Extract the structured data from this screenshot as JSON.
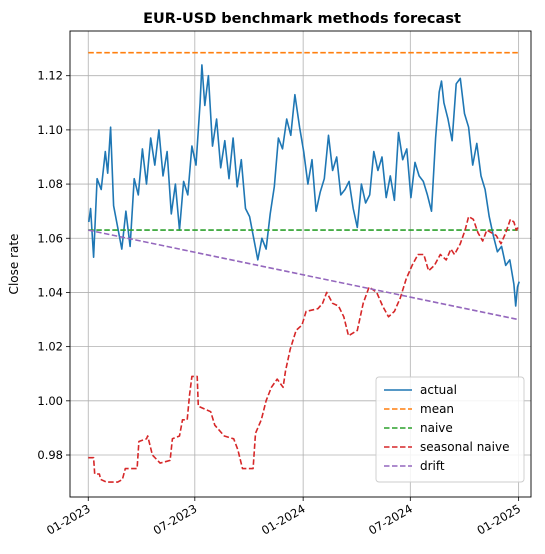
{
  "chart_data": {
    "type": "line",
    "title": "EUR-USD benchmark methods forecast",
    "xlabel": "",
    "ylabel": "Close rate",
    "xlim": [
      "2022-12-01",
      "2025-01-22"
    ],
    "ylim": [
      0.9645,
      1.1365
    ],
    "x_ticks": [
      "2023-01-01",
      "2023-07-01",
      "2024-01-01",
      "2024-07-01",
      "2025-01-01"
    ],
    "x_tick_labels": [
      "01-2023",
      "07-2023",
      "01-2024",
      "07-2024",
      "01-2025"
    ],
    "y_ticks": [
      0.98,
      1.0,
      1.02,
      1.04,
      1.06,
      1.08,
      1.1,
      1.12
    ],
    "y_tick_labels": [
      "0.98",
      "1.00",
      "1.02",
      "1.04",
      "1.06",
      "1.08",
      "1.10",
      "1.12"
    ],
    "grid": true,
    "legend_position": "lower-right",
    "series": [
      {
        "name": "actual",
        "color": "#1f77b4",
        "style": "solid",
        "points": [
          [
            "2023-01-02",
            1.066
          ],
          [
            "2023-01-05",
            1.071
          ],
          [
            "2023-01-10",
            1.053
          ],
          [
            "2023-01-16",
            1.082
          ],
          [
            "2023-01-23",
            1.078
          ],
          [
            "2023-01-30",
            1.092
          ],
          [
            "2023-02-03",
            1.084
          ],
          [
            "2023-02-08",
            1.101
          ],
          [
            "2023-02-13",
            1.072
          ],
          [
            "2023-02-20",
            1.064
          ],
          [
            "2023-02-27",
            1.056
          ],
          [
            "2023-03-06",
            1.07
          ],
          [
            "2023-03-13",
            1.057
          ],
          [
            "2023-03-20",
            1.082
          ],
          [
            "2023-03-27",
            1.076
          ],
          [
            "2023-04-03",
            1.093
          ],
          [
            "2023-04-10",
            1.08
          ],
          [
            "2023-04-17",
            1.097
          ],
          [
            "2023-04-24",
            1.087
          ],
          [
            "2023-05-01",
            1.1
          ],
          [
            "2023-05-08",
            1.083
          ],
          [
            "2023-05-15",
            1.092
          ],
          [
            "2023-05-22",
            1.069
          ],
          [
            "2023-05-29",
            1.08
          ],
          [
            "2023-06-05",
            1.063
          ],
          [
            "2023-06-12",
            1.081
          ],
          [
            "2023-06-19",
            1.076
          ],
          [
            "2023-06-26",
            1.094
          ],
          [
            "2023-07-03",
            1.087
          ],
          [
            "2023-07-10",
            1.11
          ],
          [
            "2023-07-13",
            1.124
          ],
          [
            "2023-07-18",
            1.109
          ],
          [
            "2023-07-24",
            1.12
          ],
          [
            "2023-07-31",
            1.094
          ],
          [
            "2023-08-07",
            1.104
          ],
          [
            "2023-08-14",
            1.086
          ],
          [
            "2023-08-21",
            1.096
          ],
          [
            "2023-08-28",
            1.082
          ],
          [
            "2023-09-04",
            1.097
          ],
          [
            "2023-09-11",
            1.079
          ],
          [
            "2023-09-18",
            1.089
          ],
          [
            "2023-09-25",
            1.071
          ],
          [
            "2023-10-02",
            1.068
          ],
          [
            "2023-10-09",
            1.06
          ],
          [
            "2023-10-16",
            1.052
          ],
          [
            "2023-10-23",
            1.06
          ],
          [
            "2023-10-30",
            1.056
          ],
          [
            "2023-11-06",
            1.069
          ],
          [
            "2023-11-13",
            1.079
          ],
          [
            "2023-11-20",
            1.097
          ],
          [
            "2023-11-27",
            1.093
          ],
          [
            "2023-12-04",
            1.104
          ],
          [
            "2023-12-11",
            1.098
          ],
          [
            "2023-12-18",
            1.113
          ],
          [
            "2023-12-26",
            1.101
          ],
          [
            "2024-01-02",
            1.092
          ],
          [
            "2024-01-09",
            1.08
          ],
          [
            "2024-01-16",
            1.089
          ],
          [
            "2024-01-23",
            1.07
          ],
          [
            "2024-01-30",
            1.077
          ],
          [
            "2024-02-06",
            1.082
          ],
          [
            "2024-02-13",
            1.098
          ],
          [
            "2024-02-20",
            1.085
          ],
          [
            "2024-02-27",
            1.09
          ],
          [
            "2024-03-05",
            1.076
          ],
          [
            "2024-03-12",
            1.078
          ],
          [
            "2024-03-19",
            1.081
          ],
          [
            "2024-03-26",
            1.071
          ],
          [
            "2024-04-02",
            1.064
          ],
          [
            "2024-04-09",
            1.08
          ],
          [
            "2024-04-16",
            1.073
          ],
          [
            "2024-04-23",
            1.076
          ],
          [
            "2024-04-30",
            1.092
          ],
          [
            "2024-05-07",
            1.085
          ],
          [
            "2024-05-14",
            1.09
          ],
          [
            "2024-05-21",
            1.075
          ],
          [
            "2024-05-28",
            1.083
          ],
          [
            "2024-06-04",
            1.074
          ],
          [
            "2024-06-11",
            1.099
          ],
          [
            "2024-06-18",
            1.089
          ],
          [
            "2024-06-25",
            1.093
          ],
          [
            "2024-07-02",
            1.075
          ],
          [
            "2024-07-09",
            1.088
          ],
          [
            "2024-07-16",
            1.083
          ],
          [
            "2024-07-23",
            1.081
          ],
          [
            "2024-07-30",
            1.076
          ],
          [
            "2024-08-06",
            1.07
          ],
          [
            "2024-08-13",
            1.097
          ],
          [
            "2024-08-19",
            1.114
          ],
          [
            "2024-08-23",
            1.118
          ],
          [
            "2024-08-27",
            1.11
          ],
          [
            "2024-09-03",
            1.104
          ],
          [
            "2024-09-10",
            1.096
          ],
          [
            "2024-09-17",
            1.117
          ],
          [
            "2024-09-24",
            1.119
          ],
          [
            "2024-10-01",
            1.106
          ],
          [
            "2024-10-08",
            1.101
          ],
          [
            "2024-10-15",
            1.087
          ],
          [
            "2024-10-22",
            1.095
          ],
          [
            "2024-10-29",
            1.083
          ],
          [
            "2024-11-05",
            1.078
          ],
          [
            "2024-11-12",
            1.068
          ],
          [
            "2024-11-19",
            1.061
          ],
          [
            "2024-11-26",
            1.055
          ],
          [
            "2024-12-03",
            1.057
          ],
          [
            "2024-12-10",
            1.05
          ],
          [
            "2024-12-17",
            1.052
          ],
          [
            "2024-12-24",
            1.043
          ],
          [
            "2024-12-27",
            1.035
          ],
          [
            "2024-12-30",
            1.042
          ],
          [
            "2025-01-02",
            1.044
          ]
        ]
      },
      {
        "name": "mean",
        "color": "#ff7f0e",
        "style": "dashed",
        "points": [
          [
            "2023-01-01",
            1.1285
          ],
          [
            "2024-12-31",
            1.1285
          ]
        ]
      },
      {
        "name": "naive",
        "color": "#2ca02c",
        "style": "dashed",
        "points": [
          [
            "2023-01-01",
            1.063
          ],
          [
            "2024-12-31",
            1.063
          ]
        ]
      },
      {
        "name": "seasonal naive",
        "color": "#d62728",
        "style": "dashed",
        "points": [
          [
            "2023-01-01",
            0.979
          ],
          [
            "2023-01-10",
            0.979
          ],
          [
            "2023-01-12",
            0.973
          ],
          [
            "2023-01-20",
            0.973
          ],
          [
            "2023-01-22",
            0.971
          ],
          [
            "2023-02-01",
            0.97
          ],
          [
            "2023-02-20",
            0.97
          ],
          [
            "2023-02-28",
            0.971
          ],
          [
            "2023-03-05",
            0.975
          ],
          [
            "2023-03-25",
            0.975
          ],
          [
            "2023-03-28",
            0.985
          ],
          [
            "2023-04-10",
            0.986
          ],
          [
            "2023-04-12",
            0.987
          ],
          [
            "2023-04-20",
            0.98
          ],
          [
            "2023-05-03",
            0.977
          ],
          [
            "2023-05-20",
            0.978
          ],
          [
            "2023-05-24",
            0.986
          ],
          [
            "2023-06-05",
            0.987
          ],
          [
            "2023-06-10",
            0.993
          ],
          [
            "2023-06-18",
            0.993
          ],
          [
            "2023-06-22",
            1.002
          ],
          [
            "2023-06-26",
            1.009
          ],
          [
            "2023-07-05",
            1.009
          ],
          [
            "2023-07-07",
            0.998
          ],
          [
            "2023-07-28",
            0.996
          ],
          [
            "2023-08-04",
            0.991
          ],
          [
            "2023-08-20",
            0.987
          ],
          [
            "2023-09-05",
            0.986
          ],
          [
            "2023-09-12",
            0.982
          ],
          [
            "2023-09-20",
            0.975
          ],
          [
            "2023-10-08",
            0.975
          ],
          [
            "2023-10-12",
            0.988
          ],
          [
            "2023-10-22",
            0.993
          ],
          [
            "2023-10-30",
            1.0
          ],
          [
            "2023-11-08",
            1.005
          ],
          [
            "2023-11-18",
            1.008
          ],
          [
            "2023-11-28",
            1.005
          ],
          [
            "2023-12-02",
            1.011
          ],
          [
            "2023-12-10",
            1.019
          ],
          [
            "2023-12-20",
            1.026
          ],
          [
            "2023-12-30",
            1.028
          ],
          [
            "2024-01-06",
            1.033
          ],
          [
            "2024-01-26",
            1.034
          ],
          [
            "2024-02-03",
            1.036
          ],
          [
            "2024-02-10",
            1.04
          ],
          [
            "2024-02-20",
            1.036
          ],
          [
            "2024-03-01",
            1.035
          ],
          [
            "2024-03-10",
            1.031
          ],
          [
            "2024-03-18",
            1.024
          ],
          [
            "2024-04-02",
            1.026
          ],
          [
            "2024-04-12",
            1.036
          ],
          [
            "2024-04-22",
            1.042
          ],
          [
            "2024-05-05",
            1.04
          ],
          [
            "2024-05-15",
            1.035
          ],
          [
            "2024-05-25",
            1.031
          ],
          [
            "2024-06-04",
            1.033
          ],
          [
            "2024-06-14",
            1.038
          ],
          [
            "2024-06-24",
            1.045
          ],
          [
            "2024-07-04",
            1.05
          ],
          [
            "2024-07-14",
            1.054
          ],
          [
            "2024-07-24",
            1.054
          ],
          [
            "2024-08-01",
            1.048
          ],
          [
            "2024-08-11",
            1.05
          ],
          [
            "2024-08-21",
            1.054
          ],
          [
            "2024-08-31",
            1.052
          ],
          [
            "2024-09-08",
            1.056
          ],
          [
            "2024-09-14",
            1.054
          ],
          [
            "2024-09-24",
            1.058
          ],
          [
            "2024-10-02",
            1.063
          ],
          [
            "2024-10-08",
            1.068
          ],
          [
            "2024-10-16",
            1.067
          ],
          [
            "2024-10-24",
            1.062
          ],
          [
            "2024-11-01",
            1.059
          ],
          [
            "2024-11-08",
            1.063
          ],
          [
            "2024-11-16",
            1.062
          ],
          [
            "2024-11-24",
            1.061
          ],
          [
            "2024-12-02",
            1.058
          ],
          [
            "2024-12-10",
            1.062
          ],
          [
            "2024-12-18",
            1.067
          ],
          [
            "2024-12-24",
            1.066
          ],
          [
            "2024-12-28",
            1.063
          ],
          [
            "2024-12-31",
            1.064
          ]
        ]
      },
      {
        "name": "drift",
        "color": "#9467bd",
        "style": "dashed",
        "points": [
          [
            "2023-01-01",
            1.063
          ],
          [
            "2024-12-31",
            1.03
          ]
        ]
      }
    ]
  }
}
